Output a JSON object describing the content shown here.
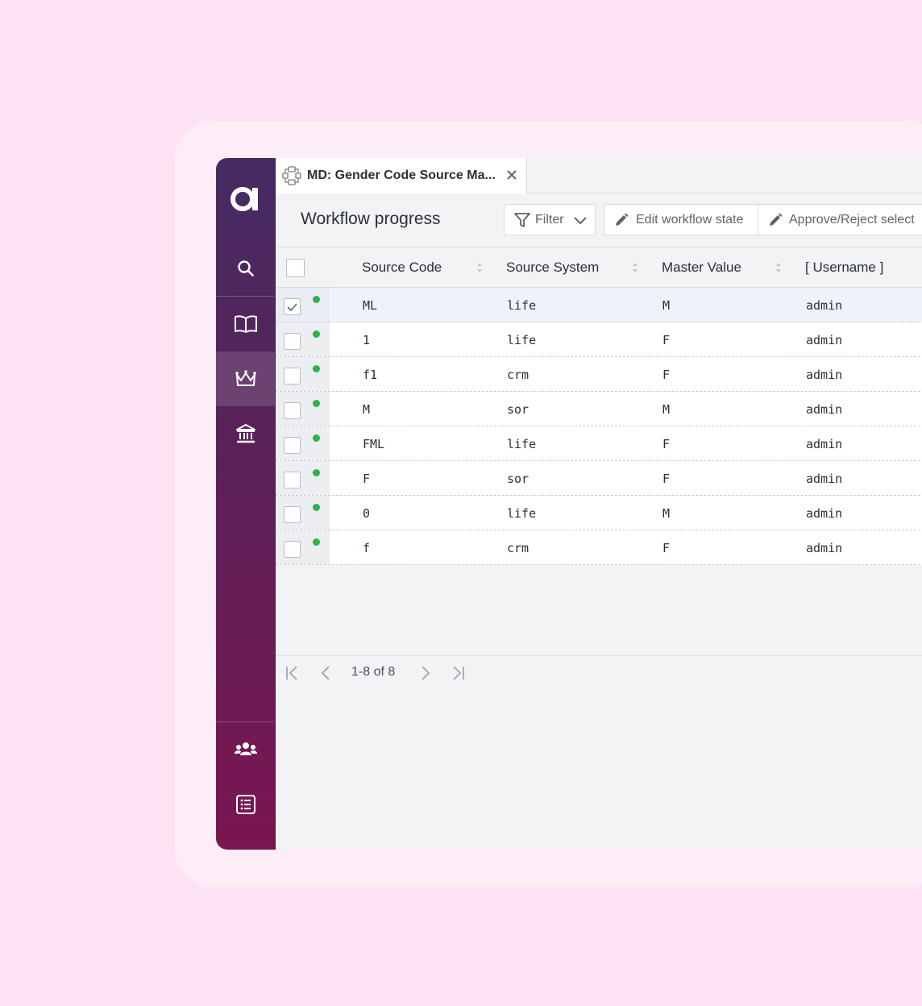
{
  "tab": {
    "title": "MD: Gender Code Source Ma..."
  },
  "toolbar": {
    "page_title": "Workflow progress",
    "filter_label": "Filter",
    "edit_label": "Edit workflow state",
    "approve_label": "Approve/Reject select"
  },
  "grid": {
    "columns": [
      "Source Code",
      "Source System",
      "Master Value",
      "[ Username ]"
    ],
    "rows": [
      {
        "source_code": "ML",
        "source_system": "life",
        "master_value": "M",
        "username": "admin",
        "selected": true
      },
      {
        "source_code": "1",
        "source_system": "life",
        "master_value": "F",
        "username": "admin",
        "selected": false
      },
      {
        "source_code": "f1",
        "source_system": "crm",
        "master_value": "F",
        "username": "admin",
        "selected": false
      },
      {
        "source_code": "M",
        "source_system": "sor",
        "master_value": "M",
        "username": "admin",
        "selected": false
      },
      {
        "source_code": "FML",
        "source_system": "life",
        "master_value": "F",
        "username": "admin",
        "selected": false
      },
      {
        "source_code": "F",
        "source_system": "sor",
        "master_value": "F",
        "username": "admin",
        "selected": false
      },
      {
        "source_code": "0",
        "source_system": "life",
        "master_value": "M",
        "username": "admin",
        "selected": false
      },
      {
        "source_code": "f",
        "source_system": "crm",
        "master_value": "F",
        "username": "admin",
        "selected": false
      }
    ]
  },
  "pager": {
    "range_text": "1-8 of 8"
  },
  "sidebar": {
    "items": [
      "search-icon",
      "book-icon",
      "crown-icon",
      "bank-icon",
      "users-icon",
      "list-icon"
    ],
    "active": "crown-icon"
  },
  "colors": {
    "page_bg": "#fde3f3",
    "sidebar_top": "#452b63",
    "sidebar_bottom": "#7a1650",
    "status_dot": "#2eb24a"
  }
}
